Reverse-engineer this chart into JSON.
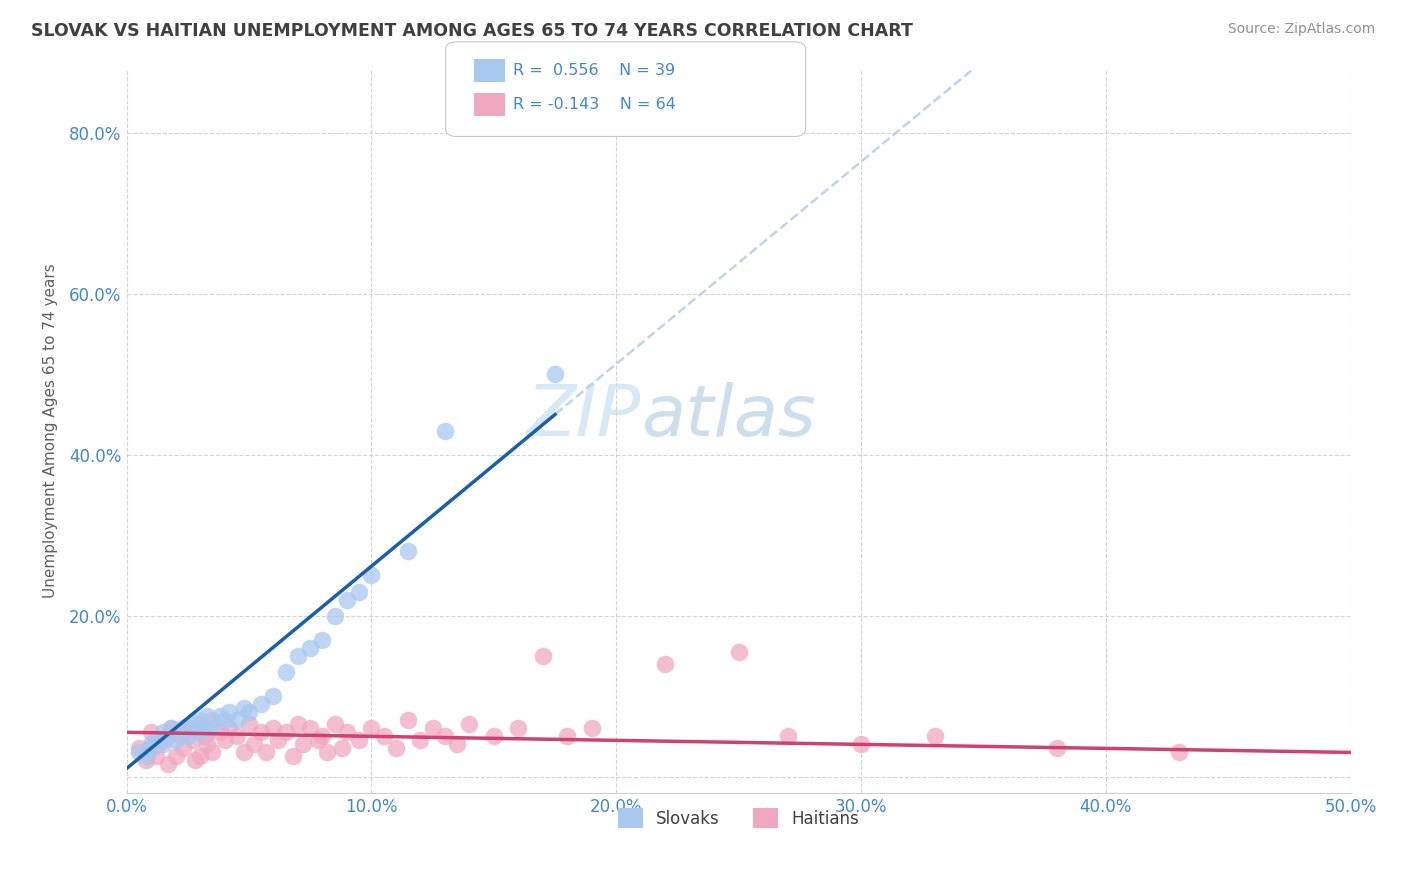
{
  "title": "SLOVAK VS HAITIAN UNEMPLOYMENT AMONG AGES 65 TO 74 YEARS CORRELATION CHART",
  "source_text": "Source: ZipAtlas.com",
  "ylabel": "Unemployment Among Ages 65 to 74 years",
  "xlim": [
    0.0,
    0.5
  ],
  "ylim": [
    -0.02,
    0.88
  ],
  "xticks": [
    0.0,
    0.1,
    0.2,
    0.3,
    0.4,
    0.5
  ],
  "xticklabels": [
    "0.0%",
    "10.0%",
    "20.0%",
    "30.0%",
    "40.0%",
    "50.0%"
  ],
  "yticks": [
    0.0,
    0.2,
    0.4,
    0.6,
    0.8
  ],
  "yticklabels": [
    "",
    "20.0%",
    "40.0%",
    "60.0%",
    "80.0%"
  ],
  "r_slovak": 0.556,
  "n_slovak": 39,
  "r_haitian": -0.143,
  "n_haitian": 64,
  "slovak_color": "#a8c8f0",
  "haitian_color": "#f0a8c0",
  "slovak_line_color": "#1a5fa8",
  "haitian_line_color": "#d04070",
  "dashed_line_color": "#b8d0e8",
  "background_color": "#ffffff",
  "grid_color": "#c8c8c8",
  "title_color": "#404040",
  "axis_label_color": "#606060",
  "tick_color": "#4488cc",
  "legend_r_color": "#4488cc",
  "watermark": "ZIPatlas",
  "slovak_x": [
    0.005,
    0.008,
    0.01,
    0.01,
    0.012,
    0.015,
    0.015,
    0.017,
    0.018,
    0.02,
    0.022,
    0.023,
    0.025,
    0.027,
    0.028,
    0.03,
    0.03,
    0.032,
    0.033,
    0.035,
    0.038,
    0.04,
    0.042,
    0.045,
    0.048,
    0.05,
    0.055,
    0.06,
    0.065,
    0.07,
    0.075,
    0.08,
    0.085,
    0.09,
    0.095,
    0.1,
    0.115,
    0.13,
    0.175
  ],
  "slovak_y": [
    0.03,
    0.025,
    0.04,
    0.035,
    0.045,
    0.04,
    0.055,
    0.05,
    0.06,
    0.045,
    0.055,
    0.06,
    0.05,
    0.06,
    0.065,
    0.055,
    0.07,
    0.06,
    0.075,
    0.06,
    0.075,
    0.07,
    0.08,
    0.07,
    0.085,
    0.08,
    0.09,
    0.1,
    0.13,
    0.15,
    0.16,
    0.17,
    0.2,
    0.22,
    0.23,
    0.25,
    0.28,
    0.43,
    0.5
  ],
  "haitian_x": [
    0.005,
    0.008,
    0.01,
    0.012,
    0.013,
    0.015,
    0.017,
    0.018,
    0.02,
    0.022,
    0.023,
    0.025,
    0.027,
    0.028,
    0.03,
    0.03,
    0.032,
    0.033,
    0.035,
    0.035,
    0.038,
    0.04,
    0.042,
    0.045,
    0.048,
    0.05,
    0.052,
    0.055,
    0.057,
    0.06,
    0.062,
    0.065,
    0.068,
    0.07,
    0.072,
    0.075,
    0.078,
    0.08,
    0.082,
    0.085,
    0.088,
    0.09,
    0.095,
    0.1,
    0.105,
    0.11,
    0.115,
    0.12,
    0.125,
    0.13,
    0.135,
    0.14,
    0.15,
    0.16,
    0.17,
    0.18,
    0.19,
    0.22,
    0.25,
    0.27,
    0.3,
    0.33,
    0.38,
    0.43
  ],
  "haitian_y": [
    0.035,
    0.02,
    0.055,
    0.025,
    0.04,
    0.045,
    0.015,
    0.06,
    0.025,
    0.05,
    0.035,
    0.06,
    0.045,
    0.02,
    0.065,
    0.025,
    0.05,
    0.04,
    0.07,
    0.03,
    0.055,
    0.045,
    0.06,
    0.05,
    0.03,
    0.065,
    0.04,
    0.055,
    0.03,
    0.06,
    0.045,
    0.055,
    0.025,
    0.065,
    0.04,
    0.06,
    0.045,
    0.05,
    0.03,
    0.065,
    0.035,
    0.055,
    0.045,
    0.06,
    0.05,
    0.035,
    0.07,
    0.045,
    0.06,
    0.05,
    0.04,
    0.065,
    0.05,
    0.06,
    0.15,
    0.05,
    0.06,
    0.14,
    0.155,
    0.05,
    0.04,
    0.05,
    0.035,
    0.03
  ],
  "slovak_line_x0": 0.0,
  "slovak_line_y0": 0.01,
  "slovak_line_x1": 0.175,
  "slovak_line_y1": 0.45,
  "haitian_line_x0": 0.0,
  "haitian_line_y0": 0.055,
  "haitian_line_x1": 0.5,
  "haitian_line_y1": 0.03
}
